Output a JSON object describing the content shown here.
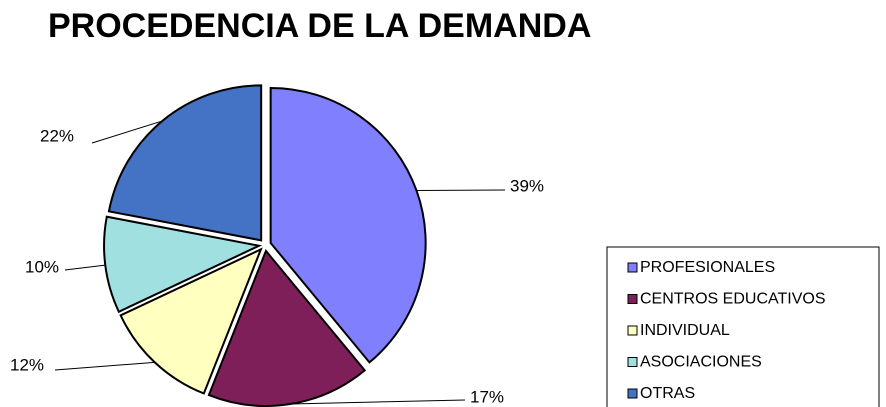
{
  "chart_data": {
    "type": "pie",
    "title": "PROCEDENCIA DE LA DEMANDA",
    "categories": [
      "PROFESIONALES",
      "CENTROS EDUCATIVOS",
      "INDIVIDUAL",
      "ASOCIACIONES",
      "OTRAS"
    ],
    "values": [
      39,
      17,
      12,
      10,
      22
    ],
    "value_labels": [
      "39%",
      "17%",
      "12%",
      "10%",
      "22%"
    ],
    "colors": [
      "#8080ff",
      "#7f1f5a",
      "#ffffc0",
      "#a0e0e0",
      "#4472c4"
    ],
    "legend": "right"
  }
}
